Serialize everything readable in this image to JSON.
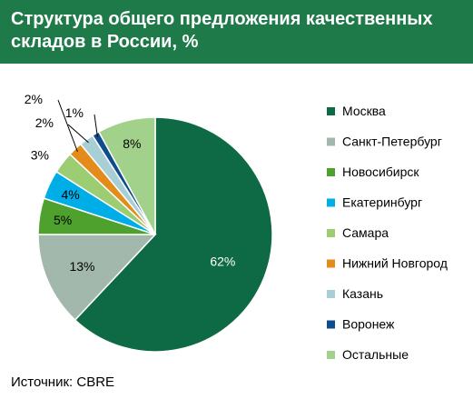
{
  "header": {
    "title_line1": "Структура общего предложения качественных",
    "title_line2": "складов в России, %",
    "background": "#1f7a49"
  },
  "source": "Источник: CBRE",
  "chart_data": {
    "type": "pie",
    "title": "Структура общего предложения качественных складов в России, %",
    "unit": "%",
    "start_angle_deg": 0,
    "direction": "clockwise",
    "legend_position": "right",
    "slices": [
      {
        "name": "Москва",
        "value": 62,
        "label": "62%",
        "color": "#0d6a45",
        "label_pos": "inside"
      },
      {
        "name": "Санкт-Петербург",
        "value": 13,
        "label": "13%",
        "color": "#a3b8ac",
        "label_pos": "inside"
      },
      {
        "name": "Новосибирск",
        "value": 5,
        "label": "5%",
        "color": "#4ea12c",
        "label_pos": "inside"
      },
      {
        "name": "Екатеринбург",
        "value": 4,
        "label": "4%",
        "color": "#00aee7",
        "label_pos": "inside"
      },
      {
        "name": "Самара",
        "value": 3,
        "label": "3%",
        "color": "#9ccd72",
        "label_pos": "outside"
      },
      {
        "name": "Нижний Новгород",
        "value": 2,
        "label": "2%",
        "color": "#e38c1c",
        "label_pos": "leader"
      },
      {
        "name": "Казань",
        "value": 2,
        "label": "2%",
        "color": "#a8cfd6",
        "label_pos": "leader"
      },
      {
        "name": "Воронеж",
        "value": 1,
        "label": "1%",
        "color": "#0f4c8c",
        "label_pos": "leader"
      },
      {
        "name": "Остальные",
        "value": 8,
        "label": "8%",
        "color": "#a2d18b",
        "label_pos": "inside"
      }
    ]
  }
}
